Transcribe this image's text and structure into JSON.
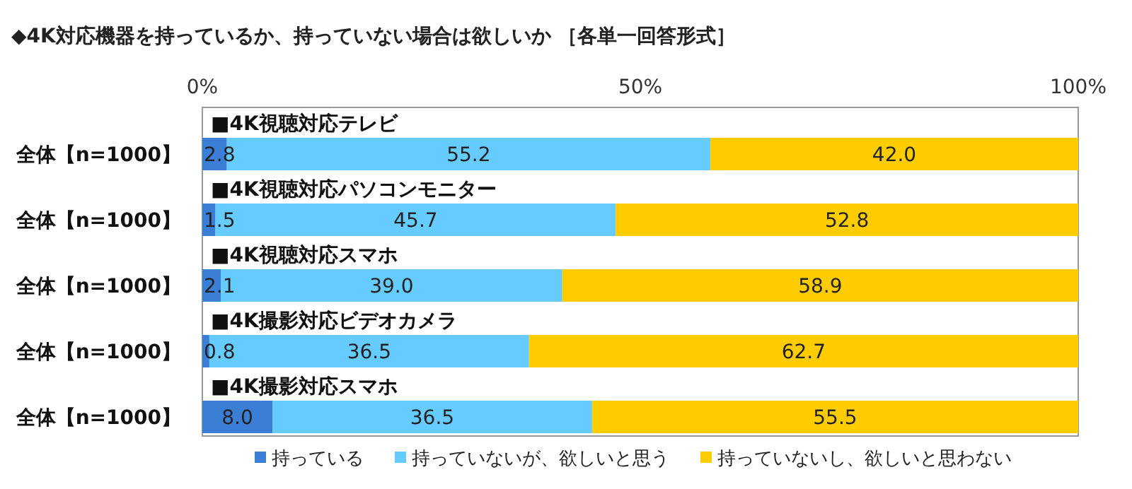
{
  "chart_data": {
    "type": "bar",
    "orientation": "horizontal",
    "stacked": true,
    "title": "◆4K対応機器を持っているか、持っていない場合は欲しいか ［各単一回答形式］",
    "categories": [
      "全体【n=1000】",
      "全体【n=1000】",
      "全体【n=1000】",
      "全体【n=1000】",
      "全体【n=1000】"
    ],
    "annotations": [
      "■4K視聴対応テレビ",
      "■4K視聴対応パソコンモニター",
      "■4K視聴対応スマホ",
      "■4K撮影対応ビデオカメラ",
      "■4K撮影対応スマホ"
    ],
    "xlim": [
      0,
      100
    ],
    "xticks": [
      {
        "value": 0,
        "label": "0%"
      },
      {
        "value": 50,
        "label": "50%"
      },
      {
        "value": 100,
        "label": "100%"
      }
    ],
    "legend": "bottom",
    "series": [
      {
        "name": "持っている",
        "color": "#3a7fd5",
        "values": [
          2.8,
          1.5,
          2.1,
          0.8,
          8.0
        ],
        "value_labels": [
          "2.8",
          "1.5",
          "2.1",
          "0.8",
          "8.0"
        ]
      },
      {
        "name": "持っていないが、欲しいと思う",
        "color": "#66ccff",
        "values": [
          55.2,
          45.7,
          39.0,
          36.5,
          36.5
        ],
        "value_labels": [
          "55.2",
          "45.7",
          "39.0",
          "36.5",
          "36.5"
        ]
      },
      {
        "name": "持っていないし、欲しいと思わない",
        "color": "#ffcc00",
        "values": [
          42.0,
          52.8,
          58.9,
          62.7,
          55.5
        ],
        "value_labels": [
          "42.0",
          "52.8",
          "58.9",
          "62.7",
          "55.5"
        ]
      }
    ]
  }
}
